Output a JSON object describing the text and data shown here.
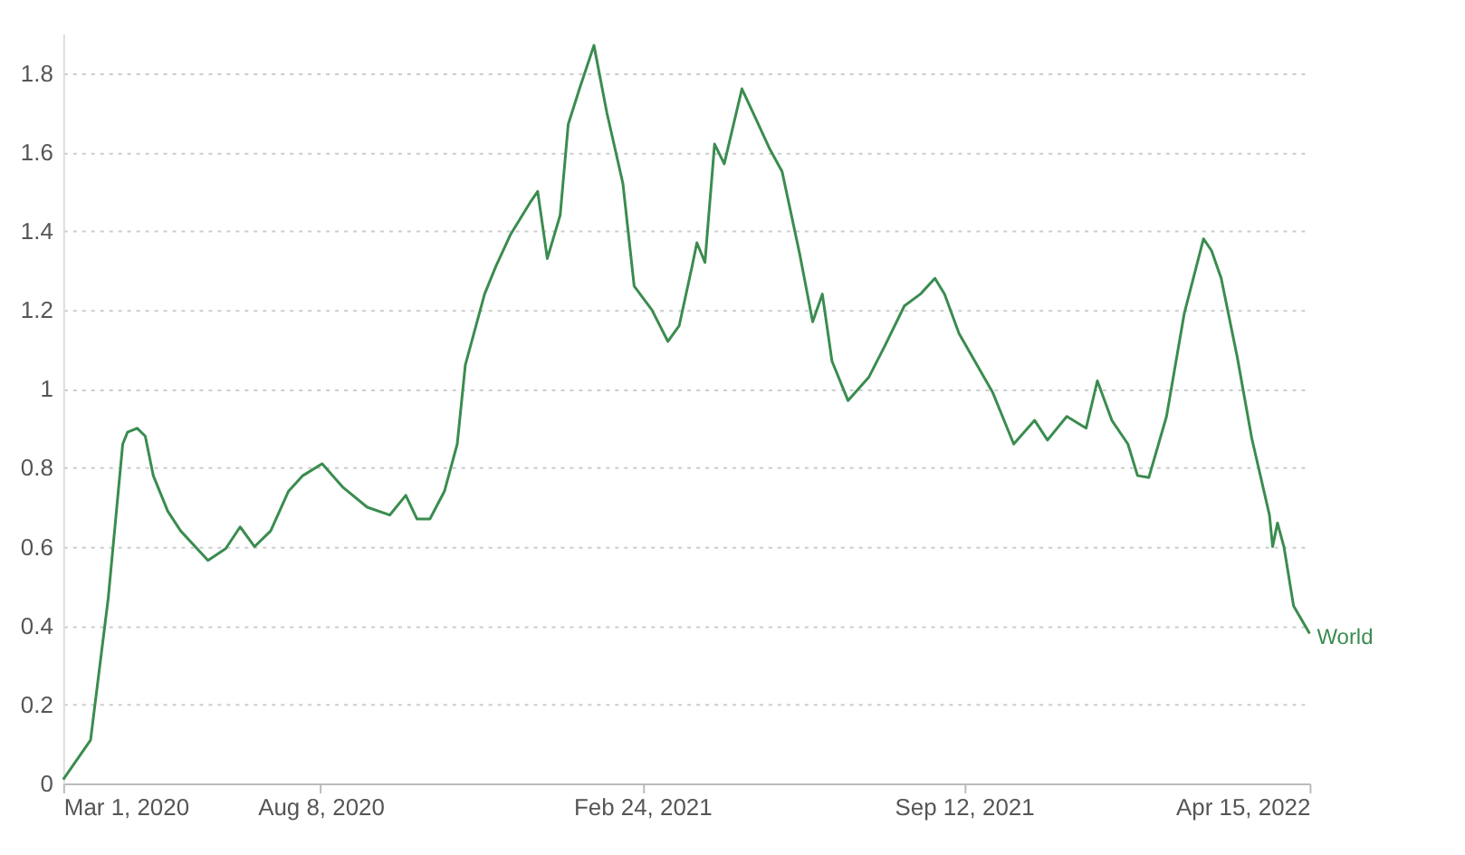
{
  "chart_data": {
    "type": "line",
    "x": [
      "2020-03-01",
      "2020-03-18",
      "2020-03-29",
      "2020-04-07",
      "2020-04-10",
      "2020-04-16",
      "2020-04-21",
      "2020-04-26",
      "2020-05-05",
      "2020-05-13",
      "2020-05-30",
      "2020-06-10",
      "2020-06-19",
      "2020-06-28",
      "2020-07-08",
      "2020-07-19",
      "2020-07-28",
      "2020-08-09",
      "2020-08-22",
      "2020-09-06",
      "2020-09-20",
      "2020-09-30",
      "2020-10-07",
      "2020-10-15",
      "2020-10-24",
      "2020-11-01",
      "2020-11-06",
      "2020-11-18",
      "2020-11-25",
      "2020-12-04",
      "2020-12-16",
      "2020-12-21",
      "2020-12-27",
      "2021-01-04",
      "2021-01-09",
      "2021-01-16",
      "2021-01-25",
      "2021-02-02",
      "2021-02-12",
      "2021-02-19",
      "2021-03-02",
      "2021-03-12",
      "2021-03-19",
      "2021-03-27",
      "2021-03-30",
      "2021-04-04",
      "2021-04-10",
      "2021-04-16",
      "2021-04-27",
      "2021-05-05",
      "2021-05-14",
      "2021-05-22",
      "2021-06-02",
      "2021-06-10",
      "2021-06-16",
      "2021-06-22",
      "2021-07-02",
      "2021-07-15",
      "2021-07-25",
      "2021-08-06",
      "2021-08-16",
      "2021-08-25",
      "2021-08-31",
      "2021-09-09",
      "2021-09-30",
      "2021-10-13",
      "2021-10-26",
      "2021-11-03",
      "2021-11-15",
      "2021-11-27",
      "2021-12-04",
      "2021-12-13",
      "2021-12-23",
      "2021-12-29",
      "2022-01-05",
      "2022-01-16",
      "2022-01-27",
      "2022-02-08",
      "2022-02-13",
      "2022-02-19",
      "2022-03-01",
      "2022-03-10",
      "2022-03-21",
      "2022-03-23",
      "2022-03-26",
      "2022-03-30",
      "2022-04-05",
      "2022-04-15"
    ],
    "series": [
      {
        "name": "World",
        "color": "#3a8c4f",
        "values": [
          0.01,
          0.11,
          0.47,
          0.86,
          0.89,
          0.9,
          0.88,
          0.78,
          0.69,
          0.64,
          0.565,
          0.595,
          0.65,
          0.6,
          0.64,
          0.74,
          0.78,
          0.81,
          0.75,
          0.7,
          0.68,
          0.73,
          0.67,
          0.67,
          0.74,
          0.86,
          1.06,
          1.24,
          1.31,
          1.39,
          1.47,
          1.5,
          1.33,
          1.44,
          1.67,
          1.76,
          1.87,
          1.7,
          1.52,
          1.26,
          1.2,
          1.12,
          1.16,
          1.31,
          1.37,
          1.32,
          1.62,
          1.57,
          1.76,
          1.69,
          1.61,
          1.55,
          1.34,
          1.17,
          1.24,
          1.07,
          0.97,
          1.03,
          1.11,
          1.21,
          1.24,
          1.28,
          1.24,
          1.14,
          0.99,
          0.86,
          0.92,
          0.87,
          0.93,
          0.9,
          1.02,
          0.92,
          0.86,
          0.78,
          0.775,
          0.93,
          1.19,
          1.38,
          1.35,
          1.28,
          1.08,
          0.875,
          0.68,
          0.6,
          0.66,
          0.6,
          0.45,
          0.38
        ]
      }
    ],
    "xlim": [
      "2020-03-01",
      "2022-04-15"
    ],
    "xticks": [
      {
        "value": "2020-03-01",
        "label": "Mar 1, 2020"
      },
      {
        "value": "2020-08-08",
        "label": "Aug 8, 2020"
      },
      {
        "value": "2021-02-24",
        "label": "Feb 24, 2021"
      },
      {
        "value": "2021-09-12",
        "label": "Sep 12, 2021"
      },
      {
        "value": "2022-04-15",
        "label": "Apr 15, 2022"
      }
    ],
    "ylim": [
      0,
      1.9
    ],
    "yticks": [
      0,
      0.2,
      0.4,
      0.6,
      0.8,
      1,
      1.2,
      1.4,
      1.6,
      1.8
    ],
    "grid": "y",
    "legend": false,
    "marker": "none",
    "line_style": "solid"
  }
}
